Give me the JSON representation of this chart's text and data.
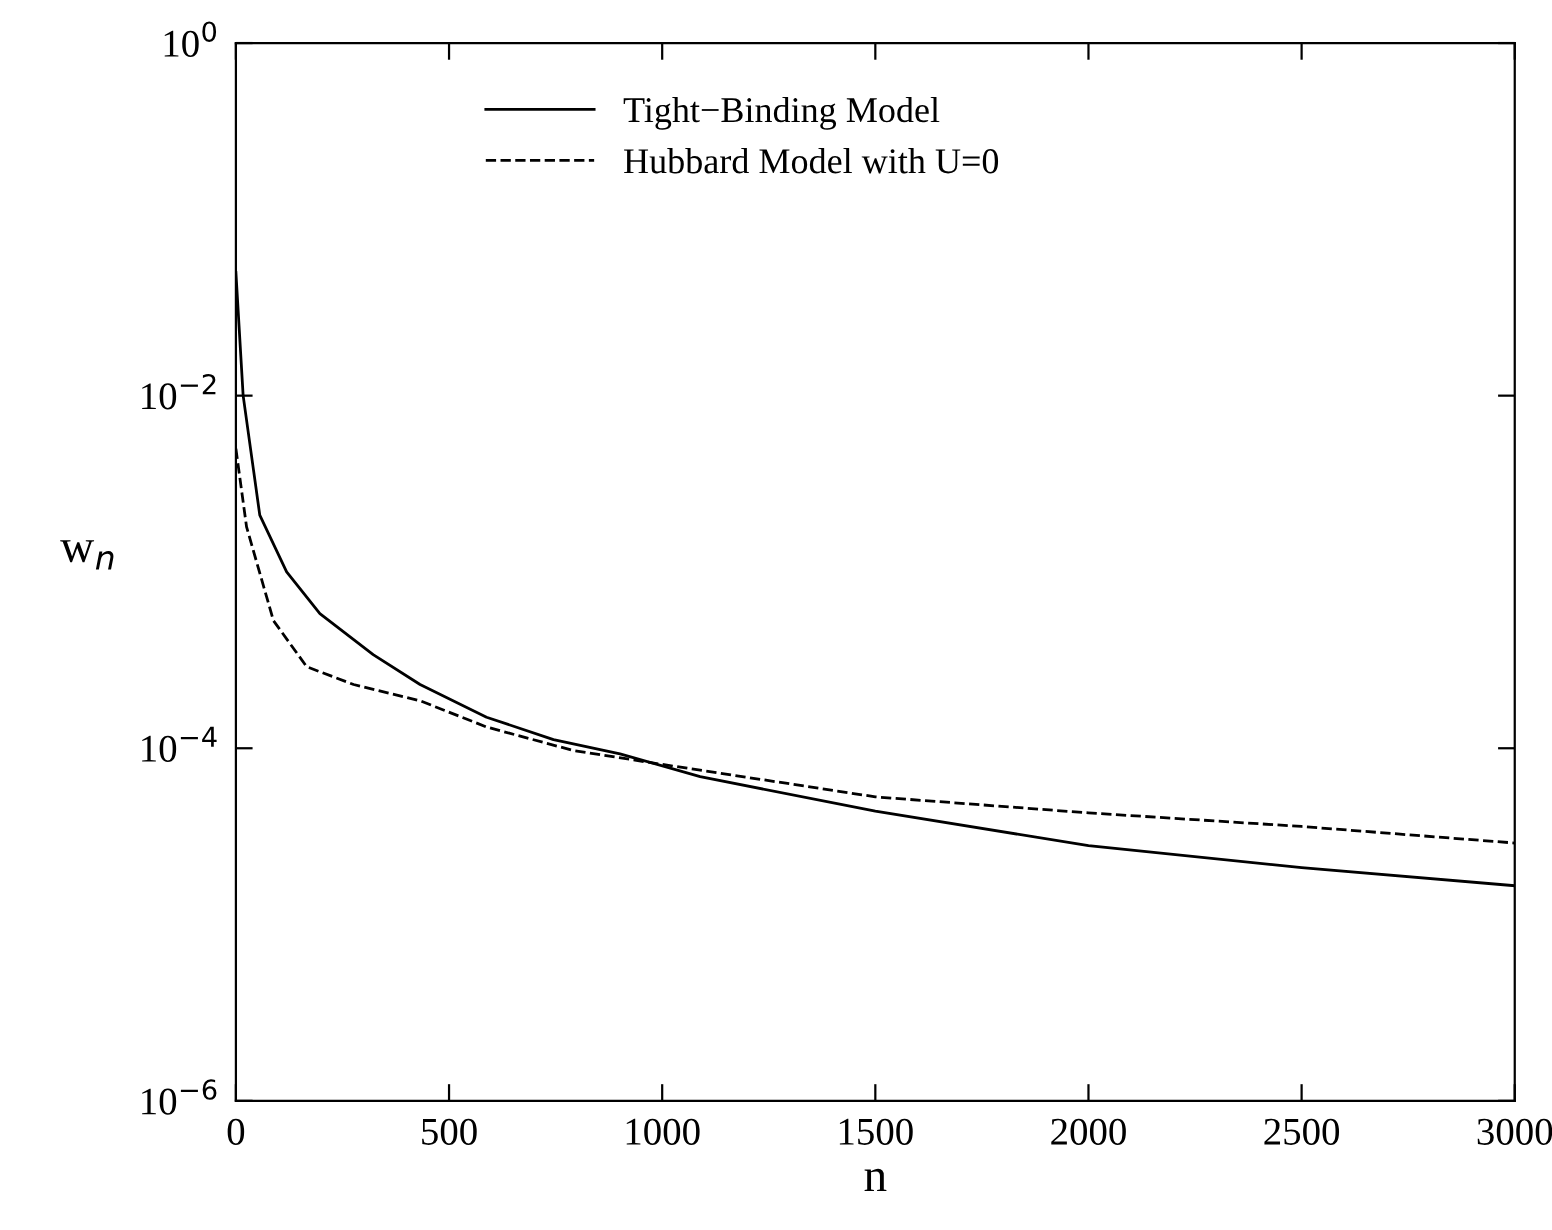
{
  "chart_data": {
    "type": "line",
    "xlabel": "n",
    "ylabel": "w$_{n}$",
    "log": "y",
    "xlim": [
      0,
      3000
    ],
    "xticks": [
      0,
      500,
      1000,
      1500,
      2000,
      2500,
      3000
    ],
    "ylim": [
      1e-06,
      1
    ],
    "yticks": [
      {
        "value": 1e-06,
        "label": "10$^{−6}$"
      },
      {
        "value": 0.0001,
        "label": "10$^{−4}$"
      },
      {
        "value": 0.01,
        "label": "10$^{−2}$"
      },
      {
        "value": 1,
        "label": "10$^{0}$"
      }
    ],
    "legend": "top",
    "grid": false,
    "series": [
      {
        "name": "Tight−Binding Model",
        "color": "#000000",
        "line_style": "solid",
        "x": [
          0,
          17,
          56,
          119,
          197,
          322,
          432,
          588,
          745,
          901,
          1089,
          1500,
          2000,
          2500,
          3000
        ],
        "values": [
          0.05,
          0.01,
          0.0021,
          0.001,
          0.00058,
          0.00034,
          0.00023,
          0.00015,
          0.000112,
          9.3e-05,
          6.9e-05,
          4.4e-05,
          2.8e-05,
          2.1e-05,
          1.66e-05
        ]
      },
      {
        "name": "Hubbard Model with U=0",
        "color": "#000000",
        "line_style": "dashed",
        "x": [
          0,
          25,
          88,
          166,
          276,
          432,
          588,
          792,
          1000,
          1500,
          2000,
          2500,
          3000
        ],
        "values": [
          0.005,
          0.0018,
          0.00053,
          0.00029,
          0.00023,
          0.000186,
          0.000132,
          9.7e-05,
          8.1e-05,
          5.3e-05,
          4.3e-05,
          3.6e-05,
          2.9e-05
        ]
      }
    ]
  }
}
